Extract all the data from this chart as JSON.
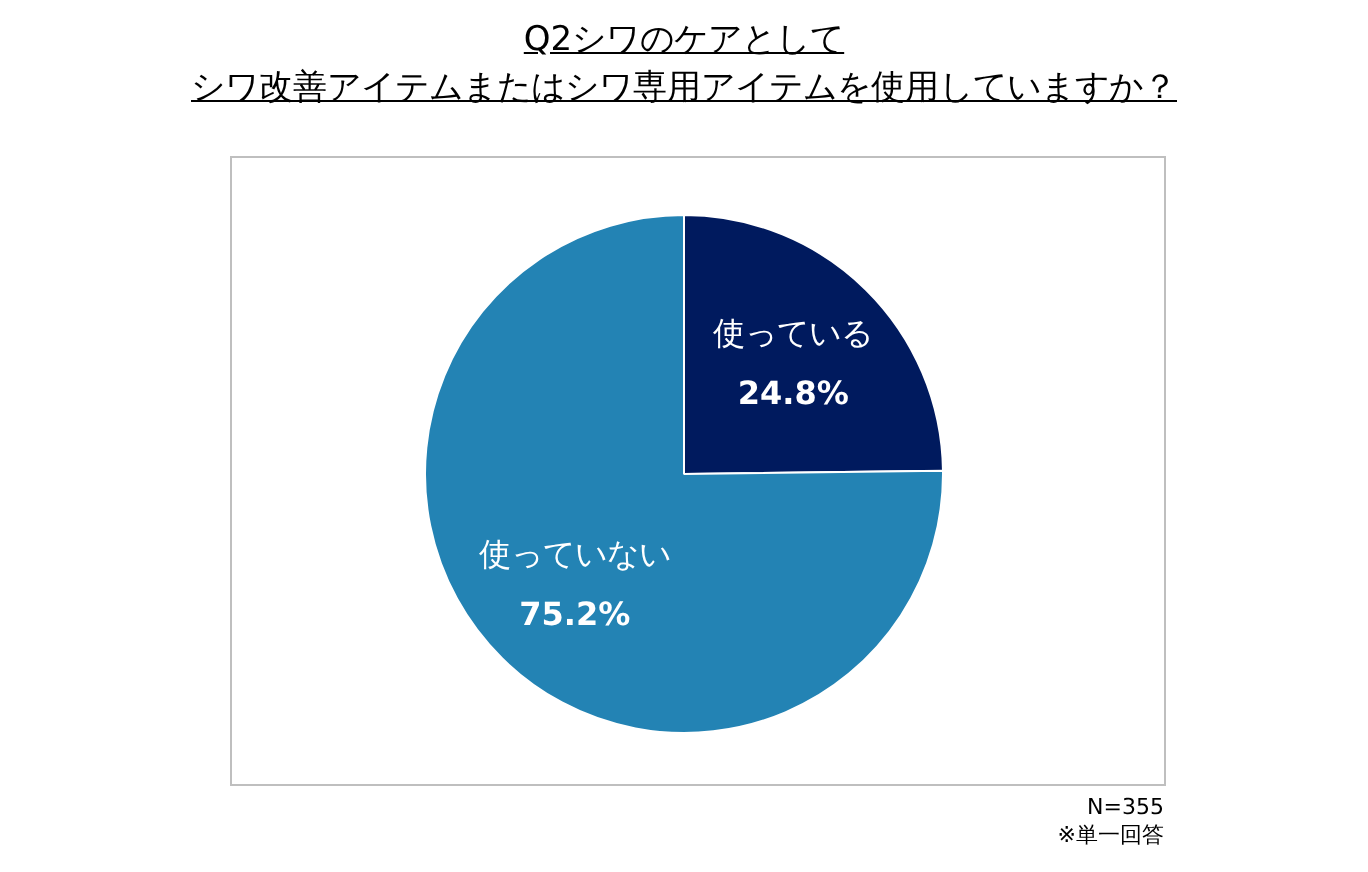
{
  "chart_data": {
    "type": "pie",
    "title": "Q2シワのケアとして",
    "subtitle": "シワ改善アイテムまたはシワ専用アイテムを使用していますか？",
    "categories": [
      "使っている",
      "使っていない"
    ],
    "values": [
      24.8,
      75.2
    ],
    "colors": [
      "#001a5e",
      "#2383b4"
    ],
    "value_labels": [
      "24.8%",
      "75.2%"
    ],
    "annotations": [
      "N=355",
      "※単一回答"
    ]
  }
}
